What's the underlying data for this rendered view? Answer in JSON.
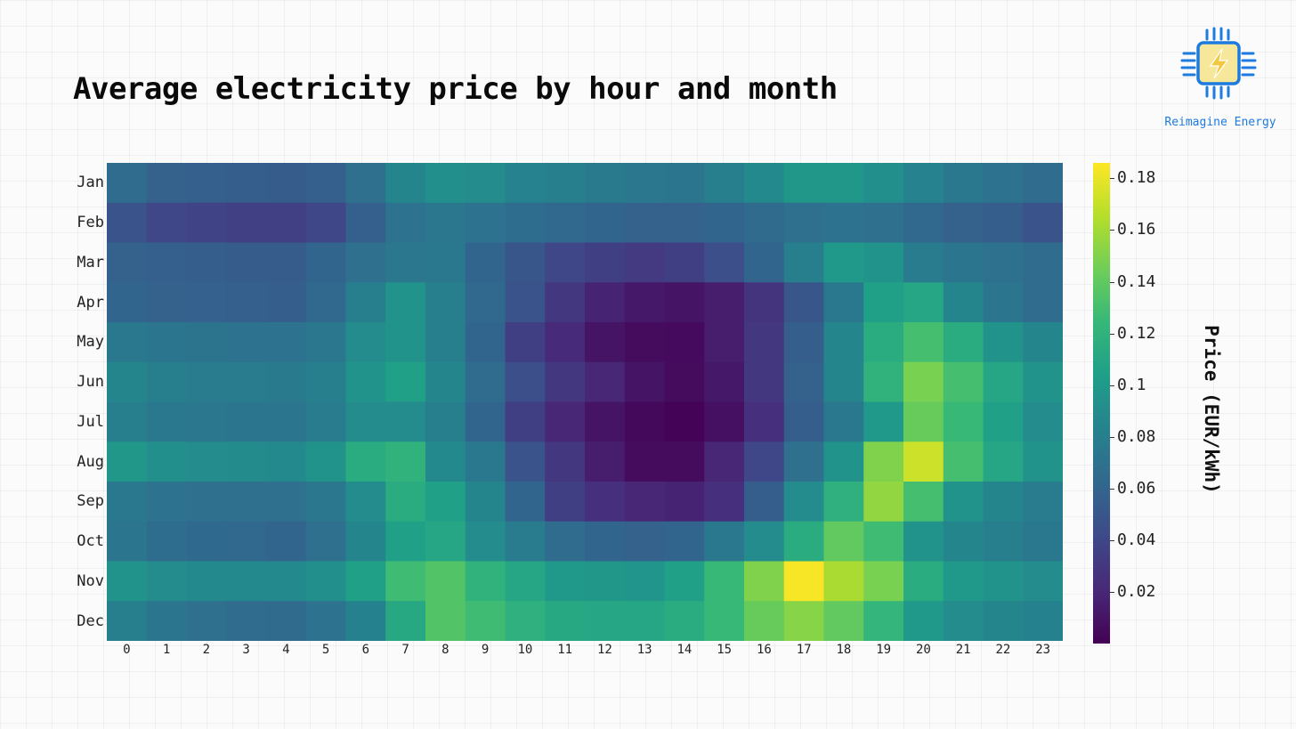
{
  "title": "Average electricity price by hour and month",
  "brand": {
    "name": "Reimagine Energy",
    "icon": "lightning-chip-icon",
    "color": "#1d7be0"
  },
  "chart_data": {
    "type": "heatmap",
    "title": "Average electricity price by hour and month",
    "x": [
      "0",
      "1",
      "2",
      "3",
      "4",
      "5",
      "6",
      "7",
      "8",
      "9",
      "10",
      "11",
      "12",
      "13",
      "14",
      "15",
      "16",
      "17",
      "18",
      "19",
      "20",
      "21",
      "22",
      "23"
    ],
    "y": [
      "Jan",
      "Feb",
      "Mar",
      "Apr",
      "May",
      "Jun",
      "Jul",
      "Aug",
      "Sep",
      "Oct",
      "Nov",
      "Dec"
    ],
    "values": [
      [
        0.065,
        0.058,
        0.056,
        0.055,
        0.054,
        0.056,
        0.068,
        0.085,
        0.092,
        0.09,
        0.083,
        0.08,
        0.076,
        0.074,
        0.073,
        0.08,
        0.088,
        0.098,
        0.098,
        0.092,
        0.083,
        0.075,
        0.07,
        0.065
      ],
      [
        0.048,
        0.04,
        0.038,
        0.036,
        0.036,
        0.04,
        0.056,
        0.07,
        0.074,
        0.07,
        0.066,
        0.062,
        0.06,
        0.058,
        0.058,
        0.06,
        0.064,
        0.068,
        0.07,
        0.068,
        0.062,
        0.058,
        0.055,
        0.048
      ],
      [
        0.058,
        0.056,
        0.055,
        0.054,
        0.054,
        0.06,
        0.068,
        0.074,
        0.075,
        0.06,
        0.05,
        0.04,
        0.035,
        0.032,
        0.035,
        0.045,
        0.06,
        0.08,
        0.1,
        0.095,
        0.078,
        0.072,
        0.069,
        0.065
      ],
      [
        0.06,
        0.058,
        0.057,
        0.056,
        0.055,
        0.062,
        0.08,
        0.095,
        0.08,
        0.062,
        0.048,
        0.03,
        0.018,
        0.012,
        0.01,
        0.015,
        0.028,
        0.05,
        0.075,
        0.105,
        0.11,
        0.085,
        0.072,
        0.065
      ],
      [
        0.075,
        0.072,
        0.071,
        0.07,
        0.07,
        0.074,
        0.09,
        0.095,
        0.08,
        0.06,
        0.035,
        0.022,
        0.01,
        0.006,
        0.005,
        0.015,
        0.03,
        0.055,
        0.085,
        0.115,
        0.13,
        0.115,
        0.095,
        0.085
      ],
      [
        0.085,
        0.08,
        0.078,
        0.077,
        0.076,
        0.08,
        0.095,
        0.105,
        0.085,
        0.065,
        0.045,
        0.03,
        0.02,
        0.01,
        0.006,
        0.012,
        0.03,
        0.058,
        0.085,
        0.12,
        0.148,
        0.13,
        0.11,
        0.095
      ],
      [
        0.08,
        0.075,
        0.074,
        0.073,
        0.073,
        0.078,
        0.09,
        0.09,
        0.08,
        0.06,
        0.035,
        0.02,
        0.01,
        0.004,
        0.001,
        0.008,
        0.025,
        0.055,
        0.075,
        0.1,
        0.142,
        0.125,
        0.105,
        0.09
      ],
      [
        0.098,
        0.092,
        0.09,
        0.089,
        0.088,
        0.095,
        0.115,
        0.12,
        0.088,
        0.075,
        0.048,
        0.03,
        0.015,
        0.006,
        0.006,
        0.02,
        0.04,
        0.068,
        0.095,
        0.15,
        0.172,
        0.13,
        0.11,
        0.095
      ],
      [
        0.075,
        0.07,
        0.068,
        0.068,
        0.068,
        0.074,
        0.09,
        0.115,
        0.105,
        0.085,
        0.06,
        0.035,
        0.025,
        0.02,
        0.018,
        0.025,
        0.055,
        0.09,
        0.118,
        0.155,
        0.13,
        0.095,
        0.085,
        0.078
      ],
      [
        0.072,
        0.066,
        0.063,
        0.062,
        0.06,
        0.068,
        0.085,
        0.105,
        0.11,
        0.09,
        0.078,
        0.065,
        0.06,
        0.058,
        0.06,
        0.075,
        0.09,
        0.115,
        0.14,
        0.128,
        0.095,
        0.085,
        0.08,
        0.075
      ],
      [
        0.095,
        0.09,
        0.088,
        0.088,
        0.088,
        0.092,
        0.105,
        0.128,
        0.135,
        0.12,
        0.11,
        0.1,
        0.098,
        0.096,
        0.105,
        0.125,
        0.15,
        0.184,
        0.162,
        0.148,
        0.115,
        0.1,
        0.095,
        0.09
      ],
      [
        0.08,
        0.072,
        0.068,
        0.065,
        0.064,
        0.07,
        0.082,
        0.112,
        0.135,
        0.128,
        0.118,
        0.112,
        0.11,
        0.11,
        0.115,
        0.125,
        0.142,
        0.152,
        0.14,
        0.122,
        0.1,
        0.09,
        0.085,
        0.082
      ]
    ],
    "colorbar": {
      "label": "Price (EUR/kWh)",
      "ticks": [
        "0.02",
        "0.04",
        "0.06",
        "0.08",
        "0.1",
        "0.12",
        "0.14",
        "0.16",
        "0.18"
      ],
      "range": [
        0.0,
        0.186
      ]
    },
    "colormap": "viridis"
  }
}
